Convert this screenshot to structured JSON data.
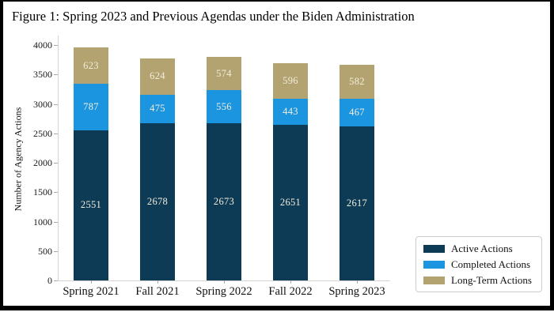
{
  "figure": {
    "title": "Figure 1: Spring 2023 and Previous Agendas under the Biden Administration"
  },
  "chart_data": {
    "type": "bar",
    "stacked": true,
    "title": "Figure 1: Spring 2023 and Previous Agendas under the Biden Administration",
    "categories": [
      "Spring 2021",
      "Fall 2021",
      "Spring 2022",
      "Fall 2022",
      "Spring 2023"
    ],
    "series": [
      {
        "name": "Active Actions",
        "color": "#0d3a55",
        "values": [
          2551,
          2678,
          2673,
          2651,
          2617
        ]
      },
      {
        "name": "Completed Actions",
        "color": "#1b95e0",
        "values": [
          787,
          475,
          556,
          443,
          467
        ]
      },
      {
        "name": "Long-Term Actions",
        "color": "#b2a370",
        "values": [
          623,
          624,
          574,
          596,
          582
        ]
      }
    ],
    "totals": [
      3961,
      3777,
      3803,
      3690,
      3666
    ],
    "xlabel": "",
    "ylabel": "Number of Agency Actions",
    "ylim": [
      0,
      4000
    ],
    "yticks": [
      0,
      500,
      1000,
      1500,
      2000,
      2500,
      3000,
      3500,
      4000
    ],
    "grid": false,
    "legend_position": "lower-right",
    "colors": {
      "bar_value_label": "#f2eddc",
      "axis_line": "#d4d4d4",
      "tick_text": "#1a1a1a",
      "frame_border": "#000000",
      "background": "#ffffff",
      "legend_border": "#cccccc"
    }
  }
}
